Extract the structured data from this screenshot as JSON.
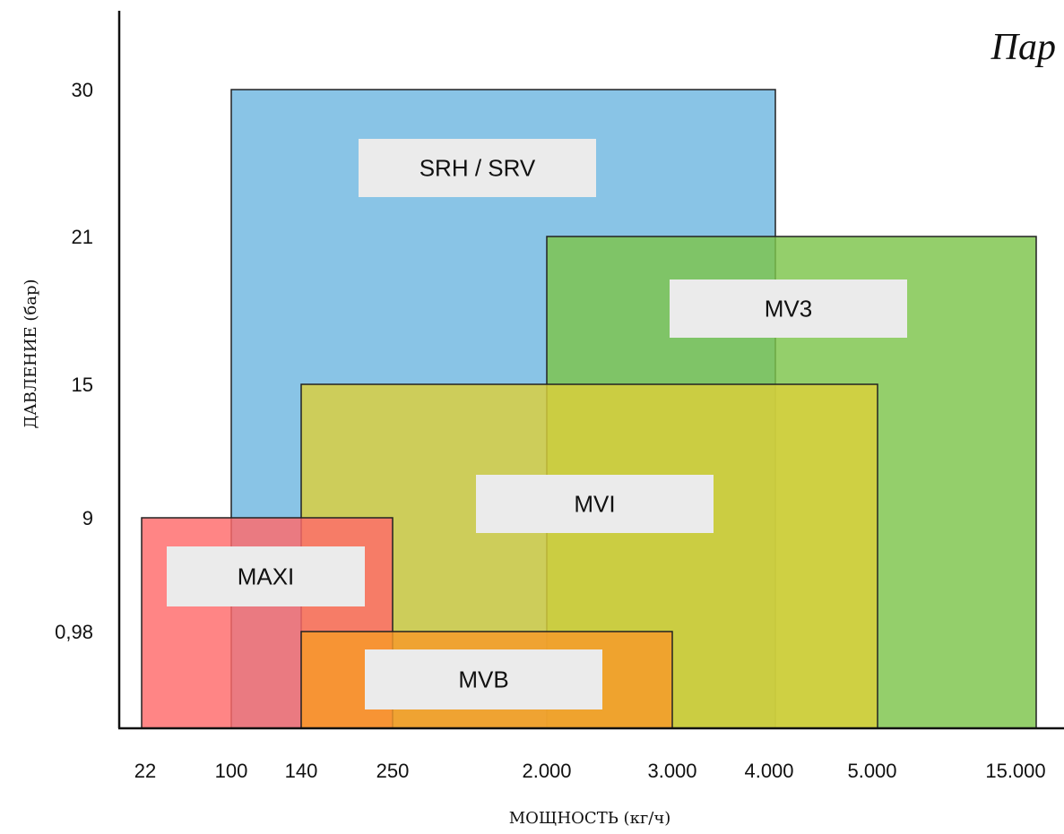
{
  "chart_data": {
    "type": "range-boxes",
    "title": "Пар",
    "xlabel": "МОЩНОСТЬ (кг/ч)",
    "ylabel": "ДАВЛЕНИЕ (бар)",
    "x_scale": "categorical",
    "y_scale": "categorical",
    "x_ticks": [
      "22",
      "100",
      "140",
      "250",
      "2.000",
      "3.000",
      "4.000",
      "5.000",
      "15.000"
    ],
    "y_ticks": [
      "0,98",
      "9",
      "15",
      "21",
      "30"
    ],
    "series": [
      {
        "name": "SRH / SRV",
        "x_range": [
          "100",
          "4.000"
        ],
        "y_range": [
          "0",
          "30"
        ],
        "color": "#6fb7e0"
      },
      {
        "name": "MV3",
        "x_range": [
          "2.000",
          "15.000"
        ],
        "y_range": [
          "0",
          "21"
        ],
        "color": "#7cc54a"
      },
      {
        "name": "MVI",
        "x_range": [
          "140",
          "5.000"
        ],
        "y_range": [
          "0",
          "15"
        ],
        "color": "#dccf3a"
      },
      {
        "name": "MAXI",
        "x_range": [
          "22",
          "250"
        ],
        "y_range": [
          "0",
          "9"
        ],
        "color": "#ff6a6a"
      },
      {
        "name": "MVB",
        "x_range": [
          "140",
          "3.000"
        ],
        "y_range": [
          "0",
          "0,98"
        ],
        "color": "#f79a2a"
      }
    ],
    "grid": false,
    "legend": "none (labels inside boxes)"
  }
}
